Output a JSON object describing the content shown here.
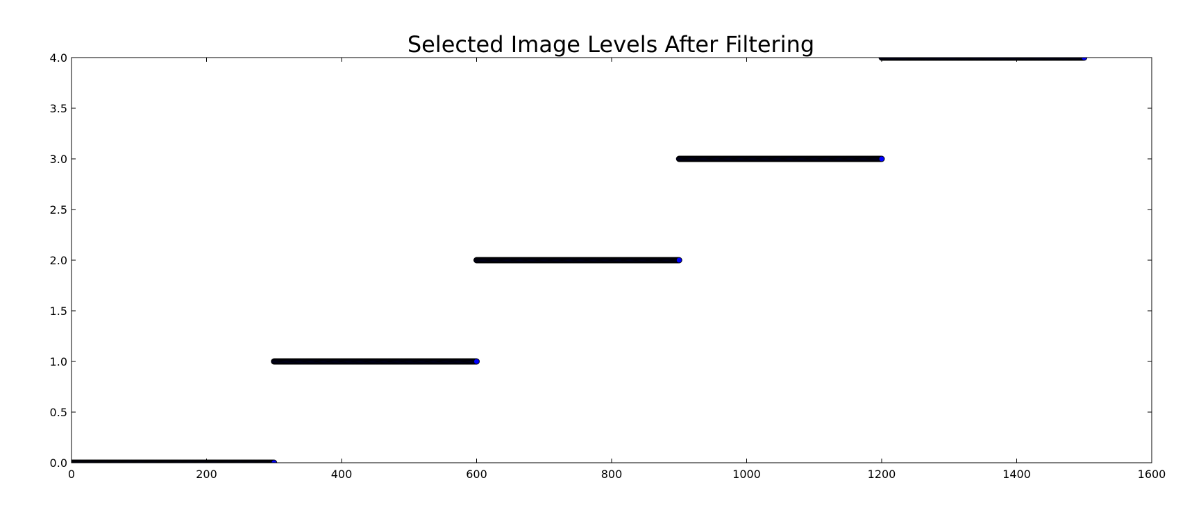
{
  "chart_data": {
    "type": "scatter",
    "title": "Selected Image Levels After Filtering",
    "xlabel": "",
    "ylabel": "",
    "xlim": [
      0,
      1600
    ],
    "ylim": [
      0,
      4.0
    ],
    "xticks": [
      "0",
      "200",
      "400",
      "600",
      "800",
      "1000",
      "1200",
      "1400",
      "1600"
    ],
    "yticks": [
      "0.0",
      "0.5",
      "1.0",
      "1.5",
      "2.0",
      "2.5",
      "3.0",
      "3.5",
      "4.0"
    ],
    "grid": false,
    "legend": "none",
    "marker_fill": "#0000ff",
    "marker_edge": "#000000",
    "series": [
      {
        "segments": [
          {
            "x_start": 0,
            "x_end": 300,
            "step": 1,
            "y": 0
          },
          {
            "x_start": 300,
            "x_end": 600,
            "step": 1,
            "y": 1
          },
          {
            "x_start": 600,
            "x_end": 900,
            "step": 1,
            "y": 2
          },
          {
            "x_start": 900,
            "x_end": 1200,
            "step": 1,
            "y": 3
          },
          {
            "x_start": 1200,
            "x_end": 1500,
            "step": 1,
            "y": 4
          }
        ]
      }
    ]
  }
}
